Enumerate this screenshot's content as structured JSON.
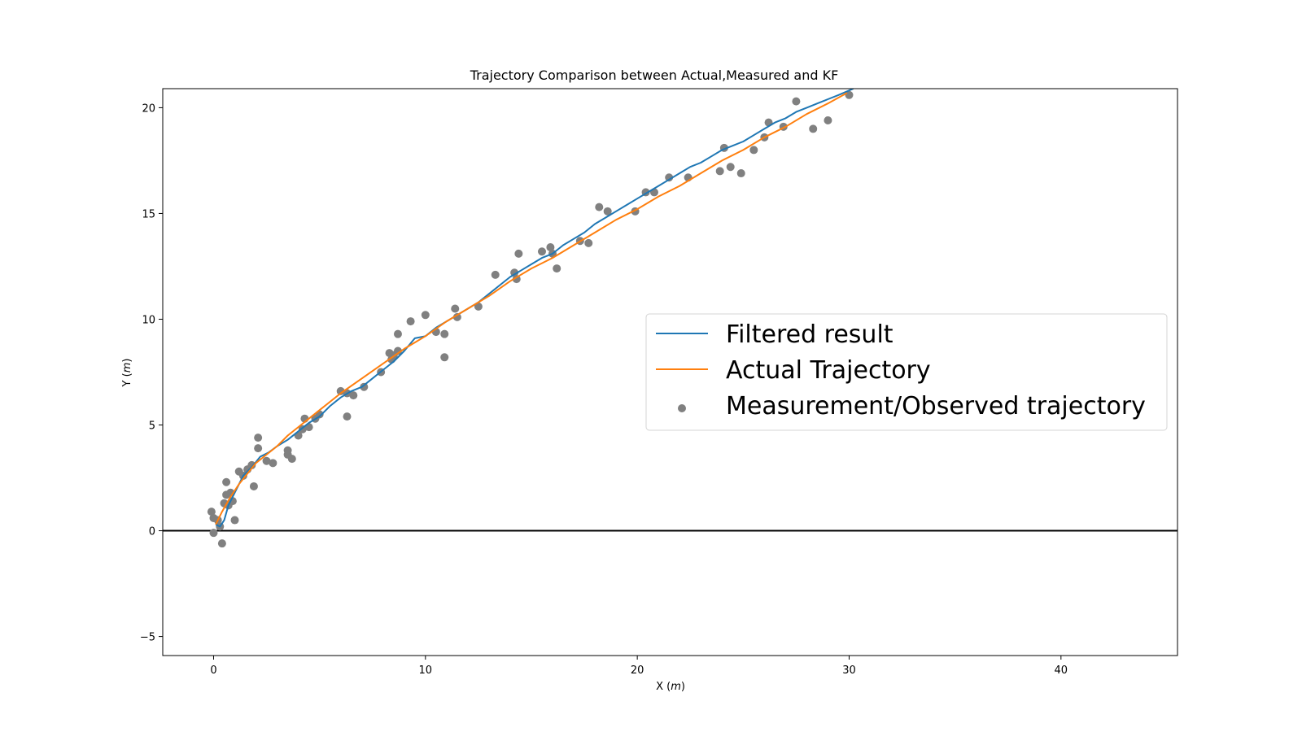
{
  "chart_data": {
    "type": "scatter",
    "title": "Trajectory Comparison between Actual,Measured and KF",
    "xlabel": "X (m)",
    "ylabel": "Y (m)",
    "xlim": [
      -2.4,
      45.5
    ],
    "ylim": [
      -5.9,
      20.9
    ],
    "xticks": [
      0,
      10,
      20,
      30,
      40
    ],
    "yticks": [
      -5,
      0,
      5,
      10,
      15,
      20
    ],
    "grid": false,
    "legend_position": "center-right",
    "reference_line": {
      "y": 0,
      "color": "#000000"
    },
    "series": [
      {
        "name": "Filtered result",
        "kind": "line",
        "color": "#1f77b4",
        "x": [
          0.1,
          0.3,
          0.5,
          0.7,
          1.0,
          1.4,
          1.8,
          2.2,
          2.6,
          3.0,
          3.5,
          4.0,
          4.5,
          5.0,
          5.5,
          6.0,
          6.5,
          7.0,
          7.5,
          8.0,
          8.5,
          9.0,
          9.5,
          10.0,
          10.5,
          11.0,
          11.5,
          12.0,
          12.5,
          13.0,
          13.5,
          14.0,
          14.5,
          15.0,
          15.5,
          16.0,
          16.5,
          17.0,
          17.5,
          18.0,
          18.5,
          19.0,
          19.5,
          20.0,
          20.5,
          21.0,
          21.5,
          22.0,
          22.5,
          23.0,
          23.5,
          24.0,
          24.5,
          25.0,
          25.5,
          26.0,
          26.5,
          27.0,
          27.5,
          28.0,
          28.5,
          29.0,
          29.5,
          30.2
        ],
        "y": [
          0.3,
          0.2,
          0.5,
          1.2,
          1.8,
          2.6,
          3.0,
          3.5,
          3.7,
          4.0,
          4.3,
          4.7,
          5.1,
          5.4,
          5.9,
          6.3,
          6.6,
          6.8,
          7.2,
          7.6,
          8.0,
          8.5,
          9.1,
          9.2,
          9.6,
          9.9,
          10.2,
          10.5,
          10.8,
          11.2,
          11.6,
          12.0,
          12.3,
          12.6,
          12.9,
          13.1,
          13.5,
          13.8,
          14.1,
          14.5,
          14.8,
          15.1,
          15.4,
          15.7,
          16.0,
          16.3,
          16.6,
          16.9,
          17.2,
          17.4,
          17.7,
          18.0,
          18.2,
          18.4,
          18.7,
          19.0,
          19.3,
          19.5,
          19.8,
          20.0,
          20.2,
          20.4,
          20.6,
          20.9
        ]
      },
      {
        "name": "Actual Trajectory",
        "kind": "line",
        "color": "#ff7f0e",
        "x": [
          0.1,
          0.4,
          0.8,
          1.2,
          1.6,
          2.0,
          2.5,
          3.0,
          3.5,
          4.0,
          4.5,
          5.0,
          5.5,
          6.0,
          7.0,
          8.0,
          9.0,
          10.0,
          11.0,
          12.0,
          13.0,
          14.0,
          15.0,
          16.0,
          17.0,
          18.0,
          19.0,
          20.0,
          21.0,
          22.0,
          23.0,
          24.0,
          25.0,
          26.0,
          27.0,
          28.0,
          29.0,
          29.9
        ],
        "y": [
          0.3,
          0.9,
          1.6,
          2.2,
          2.7,
          3.2,
          3.6,
          4.0,
          4.5,
          4.9,
          5.3,
          5.7,
          6.1,
          6.5,
          7.2,
          7.9,
          8.6,
          9.2,
          9.9,
          10.5,
          11.1,
          11.8,
          12.4,
          12.9,
          13.5,
          14.1,
          14.7,
          15.2,
          15.8,
          16.3,
          16.9,
          17.5,
          18.0,
          18.6,
          19.1,
          19.7,
          20.2,
          20.7
        ]
      },
      {
        "name": "Measurement/Observed trajectory",
        "kind": "scatter",
        "color": "#808080",
        "x": [
          -0.1,
          0.0,
          0.0,
          0.2,
          0.3,
          0.4,
          0.5,
          0.6,
          0.6,
          0.7,
          0.8,
          0.9,
          1.0,
          1.2,
          1.4,
          1.6,
          1.8,
          1.9,
          2.1,
          2.1,
          2.5,
          2.8,
          3.5,
          3.5,
          3.7,
          4.0,
          4.2,
          4.3,
          4.5,
          4.8,
          5.0,
          6.0,
          6.3,
          6.3,
          6.6,
          7.1,
          7.9,
          8.3,
          8.4,
          8.5,
          8.7,
          8.7,
          9.3,
          10.0,
          10.5,
          10.9,
          10.9,
          11.4,
          11.5,
          12.5,
          13.3,
          14.2,
          14.3,
          14.4,
          15.5,
          15.9,
          16.0,
          16.2,
          17.3,
          17.7,
          18.2,
          18.6,
          19.9,
          20.4,
          20.8,
          21.5,
          22.4,
          23.9,
          24.1,
          24.4,
          24.9,
          25.5,
          26.0,
          26.2,
          26.9,
          27.5,
          28.3,
          29.0,
          30.0
        ],
        "y": [
          0.9,
          0.6,
          -0.1,
          0.5,
          0.2,
          -0.6,
          1.3,
          2.3,
          1.7,
          1.2,
          1.8,
          1.4,
          0.5,
          2.8,
          2.6,
          2.9,
          3.1,
          2.1,
          3.9,
          4.4,
          3.3,
          3.2,
          3.6,
          3.8,
          3.4,
          4.5,
          4.8,
          5.3,
          4.9,
          5.3,
          5.5,
          6.6,
          6.5,
          5.4,
          6.4,
          6.8,
          7.5,
          8.4,
          8.1,
          8.3,
          8.5,
          9.3,
          9.9,
          10.2,
          9.4,
          9.3,
          8.2,
          10.5,
          10.1,
          10.6,
          12.1,
          12.2,
          11.9,
          13.1,
          13.2,
          13.4,
          13.1,
          12.4,
          13.7,
          13.6,
          15.3,
          15.1,
          15.1,
          16.0,
          16.0,
          16.7,
          16.7,
          17.0,
          18.1,
          17.2,
          16.9,
          18.0,
          18.6,
          19.3,
          19.1,
          20.3,
          19.0,
          19.4,
          20.6
        ]
      }
    ]
  }
}
